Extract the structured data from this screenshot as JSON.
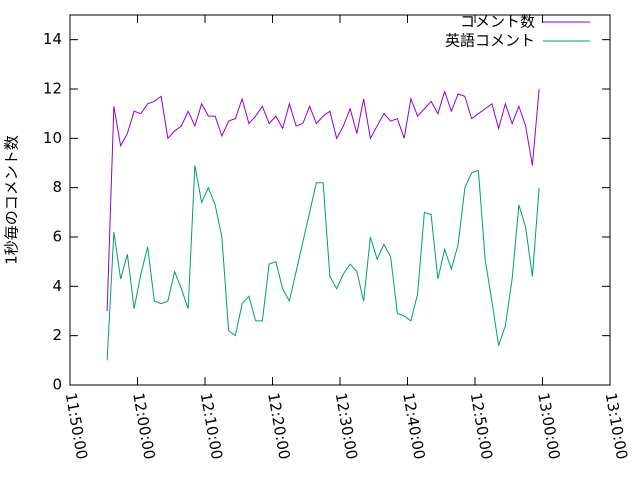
{
  "chart_data": {
    "type": "line",
    "ylabel": "1秒毎のコメント数",
    "x": [
      "11:55:30",
      "11:56:30",
      "11:57:30",
      "11:58:30",
      "11:59:30",
      "12:00:30",
      "12:01:30",
      "12:02:30",
      "12:03:30",
      "12:04:30",
      "12:05:30",
      "12:06:30",
      "12:07:30",
      "12:08:30",
      "12:09:30",
      "12:10:30",
      "12:11:30",
      "12:12:30",
      "12:13:30",
      "12:14:30",
      "12:15:30",
      "12:16:30",
      "12:17:30",
      "12:18:30",
      "12:19:30",
      "12:20:30",
      "12:21:30",
      "12:22:30",
      "12:23:30",
      "12:24:30",
      "12:25:30",
      "12:26:30",
      "12:27:30",
      "12:28:30",
      "12:29:30",
      "12:30:30",
      "12:31:30",
      "12:32:30",
      "12:33:30",
      "12:34:30",
      "12:35:30",
      "12:36:30",
      "12:37:30",
      "12:38:30",
      "12:39:30",
      "12:40:30",
      "12:41:30",
      "12:42:30",
      "12:43:30",
      "12:44:30",
      "12:45:30",
      "12:46:30",
      "12:47:30",
      "12:48:30",
      "12:49:30",
      "12:50:30",
      "12:51:30",
      "12:52:30",
      "12:53:30",
      "12:54:30",
      "12:55:30",
      "12:56:30",
      "12:57:30",
      "12:58:30",
      "12:59:30"
    ],
    "series": [
      {
        "name": "コメント数",
        "color": "#9400d3",
        "values": [
          3.0,
          11.3,
          9.7,
          10.2,
          11.1,
          11.0,
          11.4,
          11.5,
          11.7,
          10.0,
          10.3,
          10.5,
          11.1,
          10.5,
          11.4,
          10.9,
          10.9,
          10.1,
          10.7,
          10.8,
          11.6,
          10.6,
          10.9,
          11.3,
          10.6,
          10.9,
          10.4,
          11.4,
          10.5,
          10.6,
          11.3,
          10.6,
          10.9,
          11.1,
          10.0,
          10.5,
          11.2,
          10.2,
          11.6,
          10.0,
          10.5,
          11.0,
          10.7,
          10.8,
          10.0,
          11.6,
          10.9,
          11.2,
          11.5,
          11.0,
          11.9,
          11.1,
          11.8,
          11.7,
          10.8,
          11.0,
          11.2,
          11.4,
          10.4,
          11.4,
          10.6,
          11.3,
          10.5,
          8.9,
          12.0
        ]
      },
      {
        "name": "英語コメント",
        "color": "#009e73",
        "values": [
          1.0,
          6.2,
          4.3,
          5.3,
          3.1,
          4.5,
          5.6,
          3.4,
          3.3,
          3.4,
          4.6,
          3.9,
          3.1,
          8.9,
          7.4,
          8.0,
          7.3,
          6.0,
          2.2,
          2.0,
          3.3,
          3.6,
          2.6,
          2.6,
          4.9,
          5.0,
          3.9,
          3.4,
          4.6,
          5.8,
          7.0,
          8.2,
          8.2,
          4.4,
          3.9,
          4.5,
          4.9,
          4.6,
          3.4,
          6.0,
          5.1,
          5.7,
          5.2,
          2.9,
          2.8,
          2.6,
          3.7,
          7.0,
          6.9,
          4.3,
          5.5,
          4.7,
          5.7,
          8.0,
          8.6,
          8.7,
          5.1,
          3.4,
          1.6,
          2.4,
          4.3,
          7.3,
          6.4,
          4.4,
          8.0
        ]
      }
    ],
    "xlim": [
      "11:50:00",
      "13:10:00"
    ],
    "xticks": [
      "11:50:00",
      "12:00:00",
      "12:10:00",
      "12:20:00",
      "12:30:00",
      "12:40:00",
      "12:50:00",
      "13:00:00",
      "13:10:00"
    ],
    "ylim": [
      0,
      15
    ],
    "yticks": [
      0,
      2,
      4,
      6,
      8,
      10,
      12,
      14
    ],
    "legend": "top-right"
  }
}
